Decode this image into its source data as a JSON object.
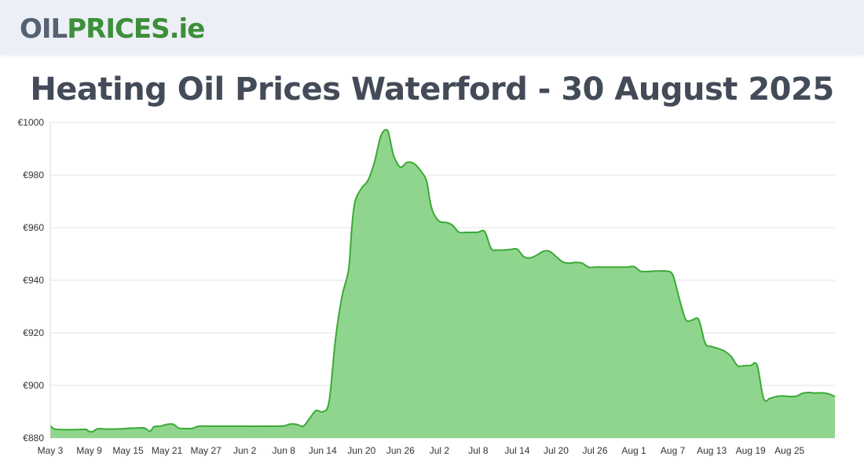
{
  "header": {
    "logo_part1": "OIL",
    "logo_part2": "PRICES",
    "logo_part3": ".ie"
  },
  "colors": {
    "line": "#3aaa35",
    "fill": "#90d58e",
    "grid": "#e3e3e3",
    "logo_dark": "#566272",
    "logo_green": "#3e8f3a",
    "title": "#434b58"
  },
  "chart_data": {
    "type": "area",
    "title": "Heating Oil Prices Waterford - 30 August 2025",
    "xlabel": "",
    "ylabel": "",
    "ylim": [
      880,
      1000
    ],
    "yticks": [
      "€1000",
      "€980",
      "€960",
      "€940",
      "€920",
      "€900",
      "€880"
    ],
    "yvalues": [
      1000,
      980,
      960,
      940,
      920,
      900,
      880
    ],
    "grid": true,
    "legend": "none",
    "x_labels": [
      "May 3",
      "May 9",
      "May 15",
      "May 21",
      "May 27",
      "Jun 2",
      "Jun 8",
      "Jun 14",
      "Jun 20",
      "Jun 26",
      "Jul 2",
      "Jul 8",
      "Jul 14",
      "Jul 20",
      "Jul 26",
      "Aug 1",
      "Aug 7",
      "Aug 13",
      "Aug 19",
      "Aug 25"
    ],
    "x_label_day_index": [
      0,
      6,
      12,
      18,
      24,
      30,
      36,
      42,
      48,
      54,
      60,
      66,
      72,
      78,
      84,
      90,
      96,
      102,
      108,
      114
    ],
    "day_span": 118,
    "series": [
      {
        "values": [
          [
            0,
            884.7
          ],
          [
            0.6,
            883.5
          ],
          [
            2,
            883.2
          ],
          [
            4,
            883.2
          ],
          [
            5.5,
            883.3
          ],
          [
            6,
            882.5
          ],
          [
            6.6,
            882.5
          ],
          [
            7.3,
            883.5
          ],
          [
            9,
            883.4
          ],
          [
            11,
            883.5
          ],
          [
            12,
            883.7
          ],
          [
            13.5,
            883.8
          ],
          [
            14.5,
            883.8
          ],
          [
            15.4,
            882.6
          ],
          [
            16,
            884.3
          ],
          [
            17,
            884.5
          ],
          [
            18,
            885.2
          ],
          [
            19,
            885.2
          ],
          [
            19.8,
            883.8
          ],
          [
            21,
            883.6
          ],
          [
            22,
            883.7
          ],
          [
            23,
            884.5
          ],
          [
            26,
            884.5
          ],
          [
            30,
            884.5
          ],
          [
            34,
            884.5
          ],
          [
            36,
            884.6
          ],
          [
            37,
            885.3
          ],
          [
            38,
            885.2
          ],
          [
            39,
            884.5
          ],
          [
            40,
            887.5
          ],
          [
            41,
            890.5
          ],
          [
            42,
            890
          ],
          [
            43,
            894
          ],
          [
            44,
            918
          ],
          [
            45,
            934
          ],
          [
            46,
            944
          ],
          [
            46.5,
            960
          ],
          [
            47,
            970
          ],
          [
            48,
            975
          ],
          [
            49,
            978
          ],
          [
            50,
            985
          ],
          [
            51,
            995
          ],
          [
            52,
            997
          ],
          [
            52.6,
            991
          ],
          [
            53,
            987
          ],
          [
            54,
            983
          ],
          [
            55,
            984.8
          ],
          [
            56,
            984.5
          ],
          [
            57,
            982
          ],
          [
            58,
            978
          ],
          [
            58.5,
            971
          ],
          [
            59,
            966
          ],
          [
            60,
            962.4
          ],
          [
            61,
            962
          ],
          [
            62,
            961
          ],
          [
            63,
            958.3
          ],
          [
            64,
            958.2
          ],
          [
            65,
            958.2
          ],
          [
            66,
            958.3
          ],
          [
            67,
            958.5
          ],
          [
            68,
            952
          ],
          [
            69,
            951.5
          ],
          [
            70,
            951.5
          ],
          [
            71,
            951.7
          ],
          [
            72,
            951.8
          ],
          [
            73,
            949
          ],
          [
            74,
            948.5
          ],
          [
            75,
            949.5
          ],
          [
            76,
            951
          ],
          [
            77,
            951
          ],
          [
            78,
            949
          ],
          [
            79,
            947
          ],
          [
            80,
            946.5
          ],
          [
            81,
            946.8
          ],
          [
            82,
            946.5
          ],
          [
            83,
            945
          ],
          [
            84,
            945
          ],
          [
            85,
            945
          ],
          [
            86,
            945
          ],
          [
            87,
            945
          ],
          [
            88,
            945
          ],
          [
            89,
            945
          ],
          [
            90,
            945.2
          ],
          [
            91,
            943.5
          ],
          [
            92,
            943.3
          ],
          [
            93,
            943.5
          ],
          [
            94,
            943.5
          ],
          [
            95,
            943.5
          ],
          [
            96,
            942
          ],
          [
            97,
            933
          ],
          [
            98,
            925
          ],
          [
            99,
            924.9
          ],
          [
            100,
            925
          ],
          [
            101,
            916
          ],
          [
            102,
            914.8
          ],
          [
            103,
            914
          ],
          [
            104,
            913
          ],
          [
            105,
            911
          ],
          [
            106,
            907.5
          ],
          [
            107,
            907.5
          ],
          [
            108,
            907.6
          ],
          [
            109,
            907.7
          ],
          [
            110,
            895
          ],
          [
            111,
            895.1
          ],
          [
            112,
            895.8
          ],
          [
            113,
            896
          ],
          [
            114,
            895.8
          ],
          [
            115,
            895.9
          ],
          [
            116,
            897
          ],
          [
            117,
            897.3
          ],
          [
            118,
            897.1
          ],
          [
            119,
            897.2
          ],
          [
            120,
            896.8
          ],
          [
            121,
            895.8
          ]
        ]
      }
    ]
  }
}
